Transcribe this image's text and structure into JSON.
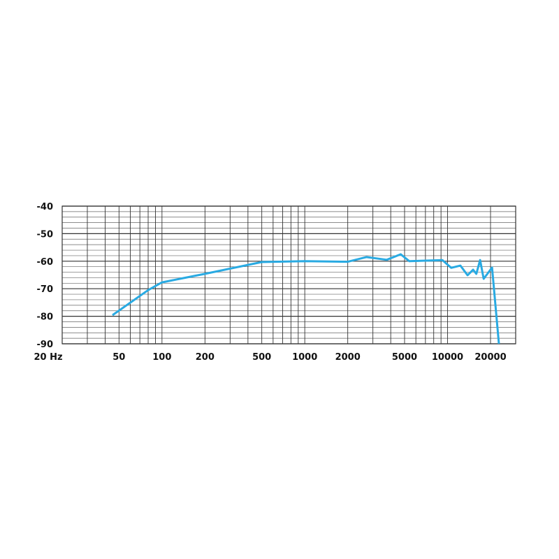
{
  "chart_data": {
    "type": "line",
    "title": "",
    "xlabel": "",
    "ylabel": "",
    "x_scale": "log",
    "xlim": [
      20,
      30000
    ],
    "ylim": [
      -90,
      -40
    ],
    "grid": true,
    "x_tick_labels": [
      {
        "value": 20,
        "label": "20 Hz"
      },
      {
        "value": 50,
        "label": "50"
      },
      {
        "value": 100,
        "label": "100"
      },
      {
        "value": 200,
        "label": "200"
      },
      {
        "value": 500,
        "label": "500"
      },
      {
        "value": 1000,
        "label": "1000"
      },
      {
        "value": 2000,
        "label": "2000"
      },
      {
        "value": 5000,
        "label": "5000"
      },
      {
        "value": 10000,
        "label": "10000"
      },
      {
        "value": 20000,
        "label": "20000"
      }
    ],
    "y_tick_labels": [
      {
        "value": -40,
        "label": "-40"
      },
      {
        "value": -50,
        "label": "-50"
      },
      {
        "value": -60,
        "label": "-60"
      },
      {
        "value": -70,
        "label": "-70"
      },
      {
        "value": -80,
        "label": "-80"
      },
      {
        "value": -90,
        "label": "-90"
      }
    ],
    "series": [
      {
        "color": "#29aae2",
        "points": [
          [
            45,
            -79.6
          ],
          [
            80,
            -70.5
          ],
          [
            100,
            -67.7
          ],
          [
            200,
            -64.6
          ],
          [
            500,
            -60.3
          ],
          [
            1000,
            -60.0
          ],
          [
            2000,
            -60.2
          ],
          [
            2700,
            -58.5
          ],
          [
            3750,
            -59.5
          ],
          [
            4700,
            -57.5
          ],
          [
            5400,
            -60.0
          ],
          [
            9200,
            -59.6
          ],
          [
            10600,
            -62.4
          ],
          [
            12300,
            -61.6
          ],
          [
            13800,
            -65.1
          ],
          [
            15100,
            -63.1
          ],
          [
            15900,
            -64.6
          ],
          [
            16900,
            -59.6
          ],
          [
            17900,
            -66.4
          ],
          [
            20500,
            -62.3
          ],
          [
            22900,
            -90.0
          ]
        ]
      }
    ]
  }
}
